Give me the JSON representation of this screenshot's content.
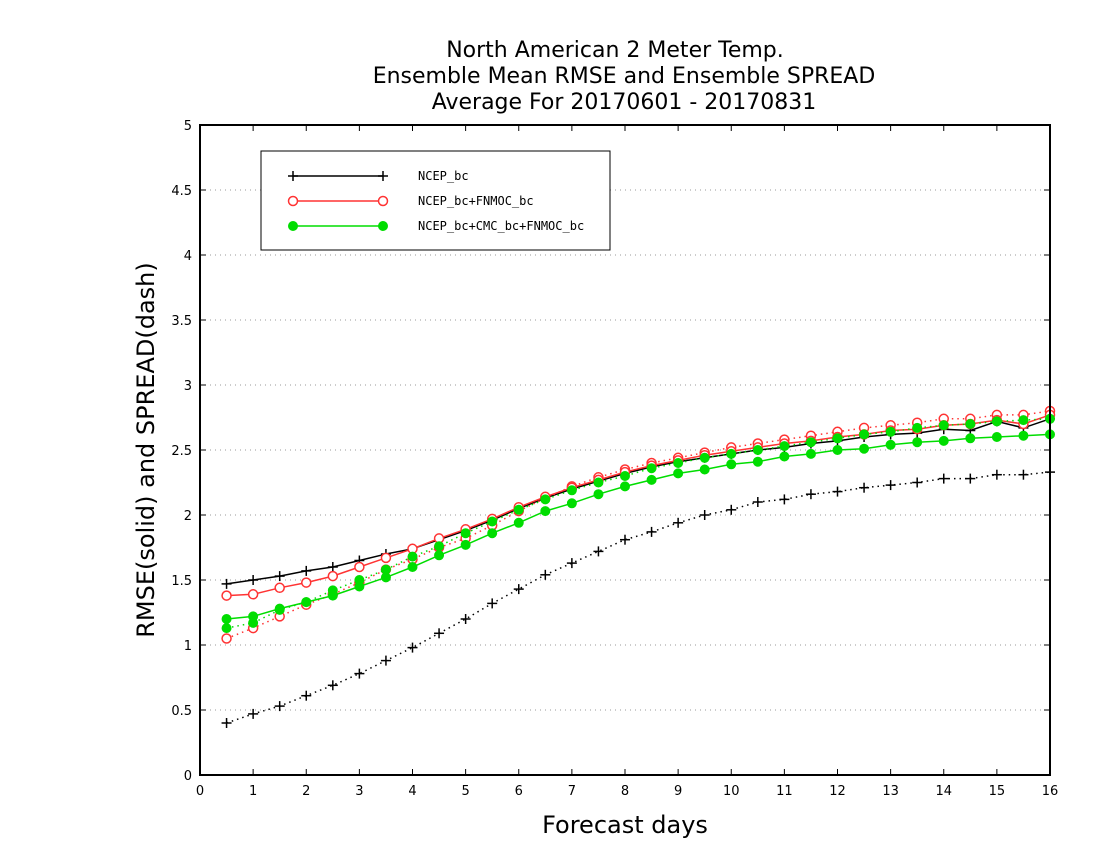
{
  "chart_data": {
    "type": "line",
    "title": [
      "North American 2 Meter Temp.",
      "Ensemble Mean RMSE and Ensemble SPREAD",
      "Average For 20170601 - 20170831"
    ],
    "xlabel": "Forecast days",
    "ylabel": "RMSE(solid) and SPREAD(dash)",
    "xlim": [
      0,
      16
    ],
    "ylim": [
      0,
      5
    ],
    "xticks": [
      "0",
      "1",
      "2",
      "3",
      "4",
      "5",
      "6",
      "7",
      "8",
      "9",
      "10",
      "11",
      "12",
      "13",
      "14",
      "15",
      "16"
    ],
    "yticks": [
      "0",
      "0.5",
      "1",
      "1.5",
      "2",
      "2.5",
      "3",
      "3.5",
      "4",
      "4.5",
      "5"
    ],
    "grid": "horizontal dotted",
    "legend_position": "top-left",
    "x": [
      0.5,
      1,
      1.5,
      2,
      2.5,
      3,
      3.5,
      4,
      4.5,
      5,
      5.5,
      6,
      6.5,
      7,
      7.5,
      8,
      8.5,
      9,
      9.5,
      10,
      10.5,
      11,
      11.5,
      12,
      12.5,
      13,
      13.5,
      14,
      14.5,
      15,
      15.5,
      16
    ],
    "series": [
      {
        "name": "NCEP_bc",
        "color": "#000000",
        "marker": "plus",
        "rmse": [
          1.47,
          1.5,
          1.53,
          1.57,
          1.6,
          1.65,
          1.7,
          1.74,
          1.81,
          1.88,
          1.96,
          2.05,
          2.13,
          2.2,
          2.26,
          2.32,
          2.37,
          2.41,
          2.44,
          2.47,
          2.5,
          2.52,
          2.55,
          2.57,
          2.6,
          2.62,
          2.63,
          2.66,
          2.65,
          2.72,
          2.67,
          2.74
        ],
        "spread": [
          0.4,
          0.47,
          0.53,
          0.61,
          0.69,
          0.78,
          0.88,
          0.98,
          1.09,
          1.2,
          1.32,
          1.43,
          1.54,
          1.63,
          1.72,
          1.81,
          1.87,
          1.94,
          2.0,
          2.04,
          2.1,
          2.12,
          2.16,
          2.18,
          2.21,
          2.23,
          2.25,
          2.28,
          2.28,
          2.31,
          2.31,
          2.33
        ]
      },
      {
        "name": "NCEP_bc+FNMOC_bc",
        "color": "#ff3333",
        "marker": "open-circle",
        "rmse": [
          1.38,
          1.39,
          1.44,
          1.48,
          1.53,
          1.6,
          1.67,
          1.74,
          1.82,
          1.89,
          1.97,
          2.06,
          2.14,
          2.21,
          2.27,
          2.33,
          2.38,
          2.42,
          2.46,
          2.49,
          2.52,
          2.55,
          2.57,
          2.6,
          2.62,
          2.65,
          2.66,
          2.69,
          2.7,
          2.73,
          2.7,
          2.77
        ],
        "spread": [
          1.05,
          1.13,
          1.22,
          1.31,
          1.39,
          1.48,
          1.58,
          1.66,
          1.75,
          1.82,
          1.92,
          2.03,
          2.13,
          2.22,
          2.29,
          2.35,
          2.4,
          2.44,
          2.48,
          2.52,
          2.55,
          2.58,
          2.61,
          2.64,
          2.67,
          2.69,
          2.71,
          2.74,
          2.74,
          2.77,
          2.77,
          2.8
        ]
      },
      {
        "name": "NCEP_bc+CMC_bc+FNMOC_bc",
        "color": "#00dd00",
        "marker": "filled-circle",
        "rmse": [
          1.2,
          1.22,
          1.28,
          1.33,
          1.38,
          1.45,
          1.52,
          1.6,
          1.69,
          1.77,
          1.86,
          1.94,
          2.03,
          2.09,
          2.16,
          2.22,
          2.27,
          2.32,
          2.35,
          2.39,
          2.41,
          2.45,
          2.47,
          2.5,
          2.51,
          2.54,
          2.56,
          2.57,
          2.59,
          2.6,
          2.61,
          2.62
        ],
        "spread": [
          1.13,
          1.17,
          1.27,
          1.33,
          1.42,
          1.5,
          1.58,
          1.68,
          1.76,
          1.86,
          1.95,
          2.04,
          2.12,
          2.19,
          2.25,
          2.3,
          2.36,
          2.4,
          2.44,
          2.47,
          2.5,
          2.53,
          2.56,
          2.59,
          2.62,
          2.64,
          2.67,
          2.69,
          2.7,
          2.72,
          2.73,
          2.74
        ]
      }
    ]
  }
}
